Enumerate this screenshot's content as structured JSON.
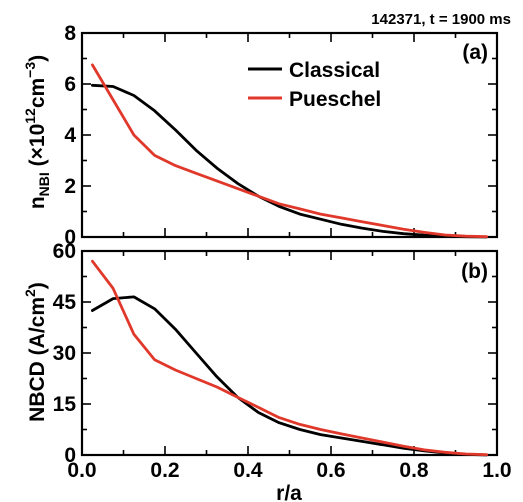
{
  "header": "142371, t = 1900 ms",
  "x_label": "r/a",
  "x_ticks": [
    "0.0",
    "0.2",
    "0.4",
    "0.6",
    "0.8",
    "1.0"
  ],
  "colors": {
    "Classical": "#000000",
    "Pueschel": "#e0382a"
  },
  "panels": {
    "a": {
      "tag": "(a)",
      "ylabel": {
        "main": "n",
        "sub": "NBI",
        "rest": " (×10",
        "sup1": "12",
        "unit": "cm",
        "sup2": "−3",
        "close": ")"
      },
      "yticks": [
        "0",
        "2",
        "4",
        "6",
        "8"
      ]
    },
    "b": {
      "tag": "(b)",
      "ylabel": {
        "main": "NBCD (A/cm",
        "sup": "2",
        "close": ")"
      },
      "yticks": [
        "0",
        "15",
        "30",
        "45",
        "60"
      ]
    }
  },
  "legend": {
    "classical": "Classical",
    "pueschel": "Pueschel"
  },
  "chart_data": [
    {
      "type": "line",
      "title": "(a)",
      "xlabel": "",
      "ylabel": "n_NBI (×10^12 cm^-3)",
      "xlim": [
        0,
        1
      ],
      "ylim": [
        0,
        8
      ],
      "series": [
        {
          "name": "Classical",
          "x": [
            0.025,
            0.075,
            0.125,
            0.175,
            0.225,
            0.275,
            0.325,
            0.375,
            0.425,
            0.475,
            0.525,
            0.575,
            0.625,
            0.675,
            0.725,
            0.775,
            0.825,
            0.875,
            0.925,
            0.975
          ],
          "values": [
            5.95,
            5.9,
            5.55,
            4.95,
            4.2,
            3.4,
            2.7,
            2.1,
            1.6,
            1.2,
            0.9,
            0.7,
            0.5,
            0.35,
            0.22,
            0.13,
            0.07,
            0.03,
            0.01,
            0.0
          ]
        },
        {
          "name": "Pueschel",
          "x": [
            0.025,
            0.125,
            0.175,
            0.225,
            0.275,
            0.325,
            0.375,
            0.425,
            0.475,
            0.525,
            0.575,
            0.625,
            0.675,
            0.725,
            0.775,
            0.825,
            0.875,
            0.925,
            0.975
          ],
          "values": [
            6.75,
            4.0,
            3.2,
            2.8,
            2.5,
            2.2,
            1.9,
            1.6,
            1.3,
            1.1,
            0.9,
            0.75,
            0.6,
            0.45,
            0.3,
            0.18,
            0.08,
            0.03,
            0.01
          ]
        }
      ]
    },
    {
      "type": "line",
      "title": "(b)",
      "xlabel": "r/a",
      "ylabel": "NBCD (A/cm^2)",
      "xlim": [
        0,
        1
      ],
      "ylim": [
        0,
        60
      ],
      "series": [
        {
          "name": "Classical",
          "x": [
            0.025,
            0.075,
            0.125,
            0.175,
            0.225,
            0.275,
            0.325,
            0.375,
            0.425,
            0.475,
            0.525,
            0.575,
            0.625,
            0.675,
            0.725,
            0.775,
            0.825,
            0.875,
            0.925,
            0.975
          ],
          "values": [
            42.5,
            46.0,
            46.5,
            43.0,
            37.0,
            30.0,
            23.0,
            17.0,
            12.5,
            9.5,
            7.5,
            6.0,
            5.0,
            4.0,
            3.0,
            2.0,
            1.2,
            0.6,
            0.2,
            0.0
          ]
        },
        {
          "name": "Pueschel",
          "x": [
            0.025,
            0.075,
            0.125,
            0.175,
            0.225,
            0.275,
            0.325,
            0.375,
            0.425,
            0.475,
            0.525,
            0.575,
            0.625,
            0.675,
            0.725,
            0.775,
            0.825,
            0.875,
            0.925,
            0.975
          ],
          "values": [
            57.0,
            49.0,
            35.5,
            28.0,
            25.0,
            22.5,
            20.0,
            17.0,
            14.0,
            11.0,
            9.0,
            7.5,
            6.2,
            5.0,
            3.8,
            2.6,
            1.5,
            0.8,
            0.3,
            0.1
          ]
        }
      ]
    }
  ]
}
